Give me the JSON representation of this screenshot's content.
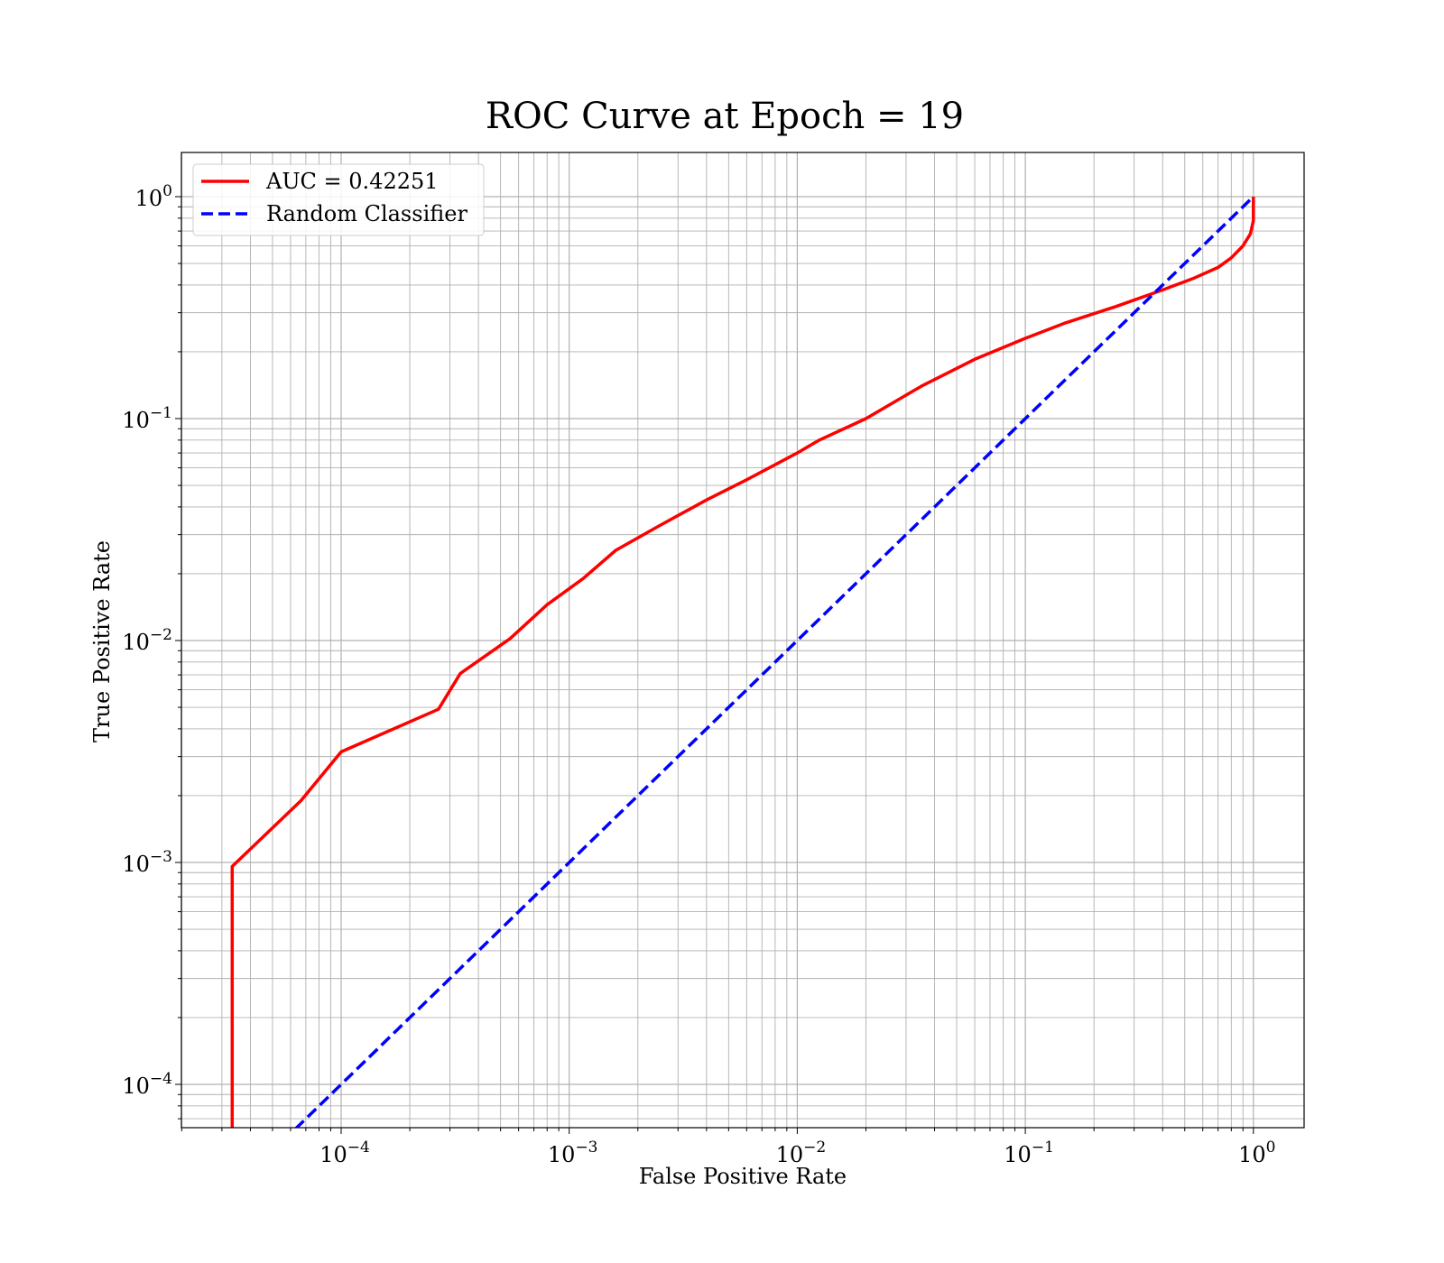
{
  "chart_data": {
    "type": "line",
    "title": "ROC Curve at Epoch = 19",
    "xlabel": "False Positive Rate",
    "ylabel": "True Positive Rate",
    "xscale": "log",
    "yscale": "log",
    "xlim": [
      2e-05,
      1.6
    ],
    "ylim": [
      6.3e-05,
      1.6
    ],
    "grid": true,
    "legend_position": "top-left",
    "x_ticks": [
      {
        "value": 0.0001,
        "base": "10",
        "exp": "−4"
      },
      {
        "value": 0.001,
        "base": "10",
        "exp": "−3"
      },
      {
        "value": 0.01,
        "base": "10",
        "exp": "−2"
      },
      {
        "value": 0.1,
        "base": "10",
        "exp": "−1"
      },
      {
        "value": 1,
        "base": "10",
        "exp": "0"
      }
    ],
    "y_ticks": [
      {
        "value": 0.0001,
        "base": "10",
        "exp": "−4"
      },
      {
        "value": 0.001,
        "base": "10",
        "exp": "−3"
      },
      {
        "value": 0.01,
        "base": "10",
        "exp": "−2"
      },
      {
        "value": 0.1,
        "base": "10",
        "exp": "−1"
      },
      {
        "value": 1,
        "base": "10",
        "exp": "0"
      }
    ],
    "series": [
      {
        "name": "AUC = 0.42251",
        "color": "#ff0000",
        "style": "solid",
        "x": [
          3.33e-05,
          3.33e-05,
          6.67e-05,
          0.0001,
          0.000267,
          0.000333,
          0.00055,
          0.0008,
          0.00115,
          0.0016,
          0.0025,
          0.004,
          0.006,
          0.01,
          0.0125,
          0.02,
          0.035,
          0.06,
          0.1,
          0.15,
          0.25,
          0.4,
          0.55,
          0.7,
          0.8,
          0.9,
          0.97,
          1.0,
          1.0
        ],
        "y": [
          6.3e-05,
          0.00096,
          0.0019,
          0.00315,
          0.0049,
          0.0071,
          0.0102,
          0.0145,
          0.019,
          0.0255,
          0.033,
          0.043,
          0.053,
          0.07,
          0.08,
          0.1,
          0.14,
          0.185,
          0.23,
          0.27,
          0.32,
          0.38,
          0.43,
          0.48,
          0.53,
          0.6,
          0.68,
          0.78,
          1.0
        ]
      },
      {
        "name": "Random Classifier",
        "color": "#0000ff",
        "style": "dashed",
        "x": [
          6.3e-05,
          1.0
        ],
        "y": [
          6.3e-05,
          1.0
        ]
      }
    ]
  }
}
